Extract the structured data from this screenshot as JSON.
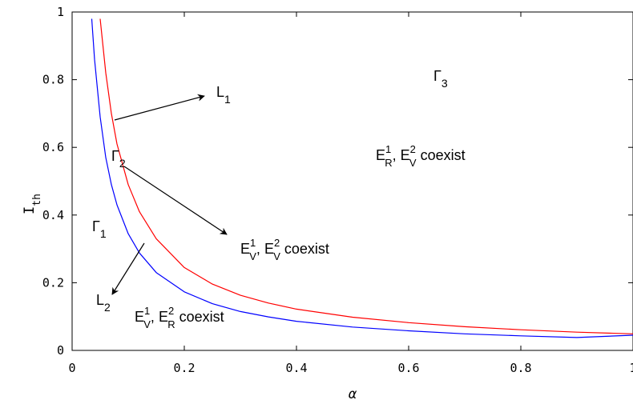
{
  "chart_data": {
    "type": "line",
    "title": "",
    "xlabel": "α",
    "ylabel": "I",
    "ylabel_sub": "th",
    "xlim": [
      0,
      1
    ],
    "ylim": [
      0,
      1
    ],
    "x_ticks": [
      0,
      0.2,
      0.4,
      0.6,
      0.8,
      1
    ],
    "x_tick_labels": [
      "0",
      "0.2",
      "0.4",
      "0.6",
      "0.8",
      "1"
    ],
    "y_ticks": [
      0,
      0.2,
      0.4,
      0.6,
      0.8,
      1
    ],
    "y_tick_labels": [
      "0",
      "0.2",
      "0.4",
      "0.6",
      "0.8",
      "1"
    ],
    "grid": false,
    "series": [
      {
        "name": "L1",
        "color": "#ff0000",
        "x": [
          0.05,
          0.06,
          0.07,
          0.08,
          0.1,
          0.12,
          0.15,
          0.2,
          0.25,
          0.3,
          0.35,
          0.4,
          0.5,
          0.6,
          0.7,
          0.8,
          0.9,
          1.0
        ],
        "y": [
          0.98,
          0.82,
          0.7,
          0.61,
          0.49,
          0.41,
          0.33,
          0.245,
          0.196,
          0.163,
          0.14,
          0.122,
          0.098,
          0.082,
          0.07,
          0.061,
          0.054,
          0.049
        ]
      },
      {
        "name": "L2",
        "color": "#0000ff",
        "x": [
          0.035,
          0.04,
          0.05,
          0.06,
          0.07,
          0.08,
          0.1,
          0.12,
          0.15,
          0.2,
          0.25,
          0.3,
          0.35,
          0.4,
          0.5,
          0.6,
          0.7,
          0.8,
          0.9,
          1.0
        ],
        "y": [
          0.98,
          0.86,
          0.69,
          0.57,
          0.49,
          0.43,
          0.345,
          0.288,
          0.23,
          0.173,
          0.138,
          0.115,
          0.099,
          0.086,
          0.069,
          0.058,
          0.049,
          0.043,
          0.038,
          0.045
        ]
      }
    ],
    "annotations": {
      "gamma3": {
        "text": "Γ",
        "sub": "3"
      },
      "coexist_r_v": {
        "e1": "E",
        "e1_sup": "1",
        "e1_sub": "R",
        "sep": ", ",
        "e2": "E",
        "e2_sup": "2",
        "e2_sub": "V",
        "tail": " coexist"
      },
      "gamma2": {
        "text": "Γ",
        "sub": "2"
      },
      "coexist_v_v": {
        "e1": "E",
        "e1_sup": "1",
        "e1_sub": "V",
        "sep": ", ",
        "e2": "E",
        "e2_sup": "2",
        "e2_sub": "V",
        "tail": " coexist"
      },
      "gamma1": {
        "text": "Γ",
        "sub": "1"
      },
      "l1_label": {
        "text": "L",
        "sub": "1"
      },
      "l2_label": {
        "text": "L",
        "sub": "2"
      },
      "coexist_v_r": {
        "e1": "E",
        "e1_sup": "1",
        "e1_sub": "V",
        "sep": ", ",
        "e2": "E",
        "e2_sup": "2",
        "e2_sub": "R",
        "tail": " coexist"
      }
    }
  }
}
